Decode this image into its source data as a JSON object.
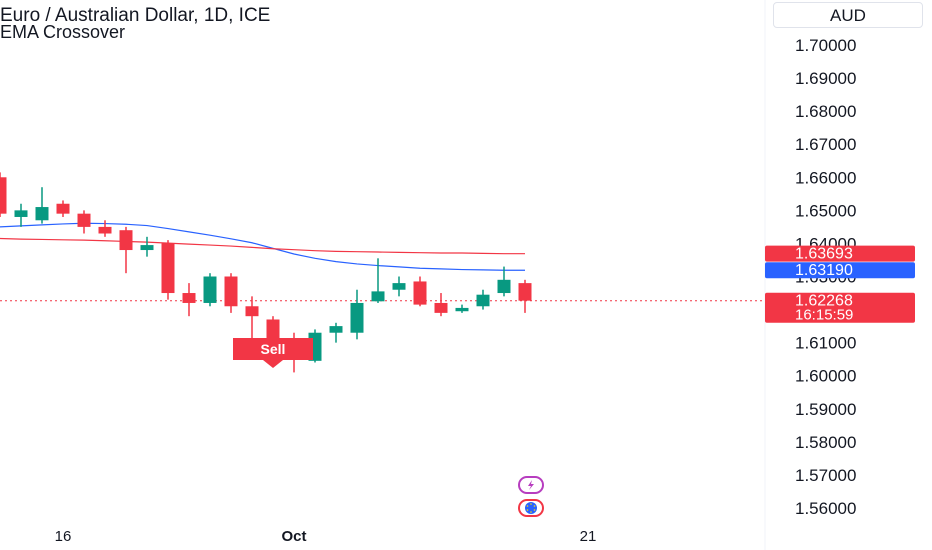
{
  "header": {
    "title": "Euro / Australian Dollar, 1D, ICE",
    "indicator": "EMA Crossover",
    "currency": "AUD"
  },
  "colors": {
    "up": "#089981",
    "down": "#f23645",
    "ema_fast": "#2962ff",
    "ema_slow": "#f23645",
    "price_line": "#f23645"
  },
  "signal": {
    "label": "Sell"
  },
  "badges": {
    "flash_icon": "lightning-icon",
    "eu_icon": "eu-flag-icon"
  },
  "chart_data": {
    "type": "candlestick",
    "title": "Euro / Australian Dollar, 1D, ICE",
    "y_ticks": [
      "1.70000",
      "1.69000",
      "1.68000",
      "1.67000",
      "1.66000",
      "1.65000",
      "1.64000",
      "1.63000",
      "1.62000",
      "1.61000",
      "1.60000",
      "1.59000",
      "1.58000",
      "1.57000",
      "1.56000"
    ],
    "y_tick_values": [
      1.7,
      1.69,
      1.68,
      1.67,
      1.66,
      1.65,
      1.64,
      1.63,
      1.62,
      1.61,
      1.6,
      1.59,
      1.58,
      1.57,
      1.56
    ],
    "ylim": [
      1.5585,
      1.7125
    ],
    "x_ticks": [
      {
        "label": "16",
        "index": 3
      },
      {
        "label": "Oct",
        "index": 14
      },
      {
        "label": "21",
        "index": 28
      }
    ],
    "candles": [
      {
        "o": 1.66,
        "h": 1.6615,
        "l": 1.648,
        "c": 1.649
      },
      {
        "o": 1.648,
        "h": 1.652,
        "l": 1.645,
        "c": 1.65
      },
      {
        "o": 1.647,
        "h": 1.657,
        "l": 1.646,
        "c": 1.651
      },
      {
        "o": 1.652,
        "h": 1.653,
        "l": 1.648,
        "c": 1.649
      },
      {
        "o": 1.649,
        "h": 1.65,
        "l": 1.643,
        "c": 1.645
      },
      {
        "o": 1.645,
        "h": 1.647,
        "l": 1.642,
        "c": 1.643
      },
      {
        "o": 1.644,
        "h": 1.645,
        "l": 1.631,
        "c": 1.638
      },
      {
        "o": 1.638,
        "h": 1.642,
        "l": 1.636,
        "c": 1.6395
      },
      {
        "o": 1.64,
        "h": 1.641,
        "l": 1.623,
        "c": 1.625
      },
      {
        "o": 1.625,
        "h": 1.628,
        "l": 1.618,
        "c": 1.622
      },
      {
        "o": 1.622,
        "h": 1.631,
        "l": 1.621,
        "c": 1.63
      },
      {
        "o": 1.63,
        "h": 1.631,
        "l": 1.619,
        "c": 1.621
      },
      {
        "o": 1.621,
        "h": 1.624,
        "l": 1.608,
        "c": 1.618
      },
      {
        "o": 1.617,
        "h": 1.618,
        "l": 1.606,
        "c": 1.608
      },
      {
        "o": 1.608,
        "h": 1.613,
        "l": 1.601,
        "c": 1.605
      },
      {
        "o": 1.6045,
        "h": 1.614,
        "l": 1.604,
        "c": 1.613
      },
      {
        "o": 1.613,
        "h": 1.616,
        "l": 1.61,
        "c": 1.615
      },
      {
        "o": 1.613,
        "h": 1.626,
        "l": 1.611,
        "c": 1.622
      },
      {
        "o": 1.6225,
        "h": 1.6355,
        "l": 1.622,
        "c": 1.6255
      },
      {
        "o": 1.626,
        "h": 1.63,
        "l": 1.624,
        "c": 1.628
      },
      {
        "o": 1.6285,
        "h": 1.63,
        "l": 1.621,
        "c": 1.6215
      },
      {
        "o": 1.622,
        "h": 1.625,
        "l": 1.618,
        "c": 1.619
      },
      {
        "o": 1.6195,
        "h": 1.6215,
        "l": 1.619,
        "c": 1.6205
      },
      {
        "o": 1.621,
        "h": 1.626,
        "l": 1.62,
        "c": 1.6245
      },
      {
        "o": 1.625,
        "h": 1.633,
        "l": 1.624,
        "c": 1.629
      },
      {
        "o": 1.628,
        "h": 1.629,
        "l": 1.619,
        "c": 1.6227
      }
    ],
    "series": [
      {
        "name": "EMA fast",
        "values": [
          1.645,
          1.6453,
          1.6456,
          1.6459,
          1.6461,
          1.646,
          1.6458,
          1.6454,
          1.6445,
          1.6435,
          1.6425,
          1.6414,
          1.6402,
          1.6385,
          1.6368,
          1.6355,
          1.6345,
          1.6338,
          1.6333,
          1.6329,
          1.6325,
          1.6323,
          1.6321,
          1.632,
          1.6319,
          1.6319
        ]
      },
      {
        "name": "EMA slow",
        "values": [
          1.6415,
          1.6413,
          1.6412,
          1.6411,
          1.641,
          1.6408,
          1.6406,
          1.6404,
          1.6401,
          1.6398,
          1.6395,
          1.6392,
          1.6388,
          1.6384,
          1.6381,
          1.6378,
          1.6376,
          1.6375,
          1.6374,
          1.6373,
          1.6372,
          1.6371,
          1.6371,
          1.637,
          1.6369,
          1.6369
        ]
      }
    ],
    "price_labels": [
      {
        "value": 1.63693,
        "text": "1.63693",
        "color": "#f23645"
      },
      {
        "value": 1.6319,
        "text": "1.63190",
        "color": "#2962ff"
      },
      {
        "value": 1.62268,
        "text": "1.62268",
        "countdown": "16:15:59",
        "color": "#f23645"
      }
    ],
    "current_price": 1.62268,
    "sell_signal_index": 13,
    "grid": false
  }
}
